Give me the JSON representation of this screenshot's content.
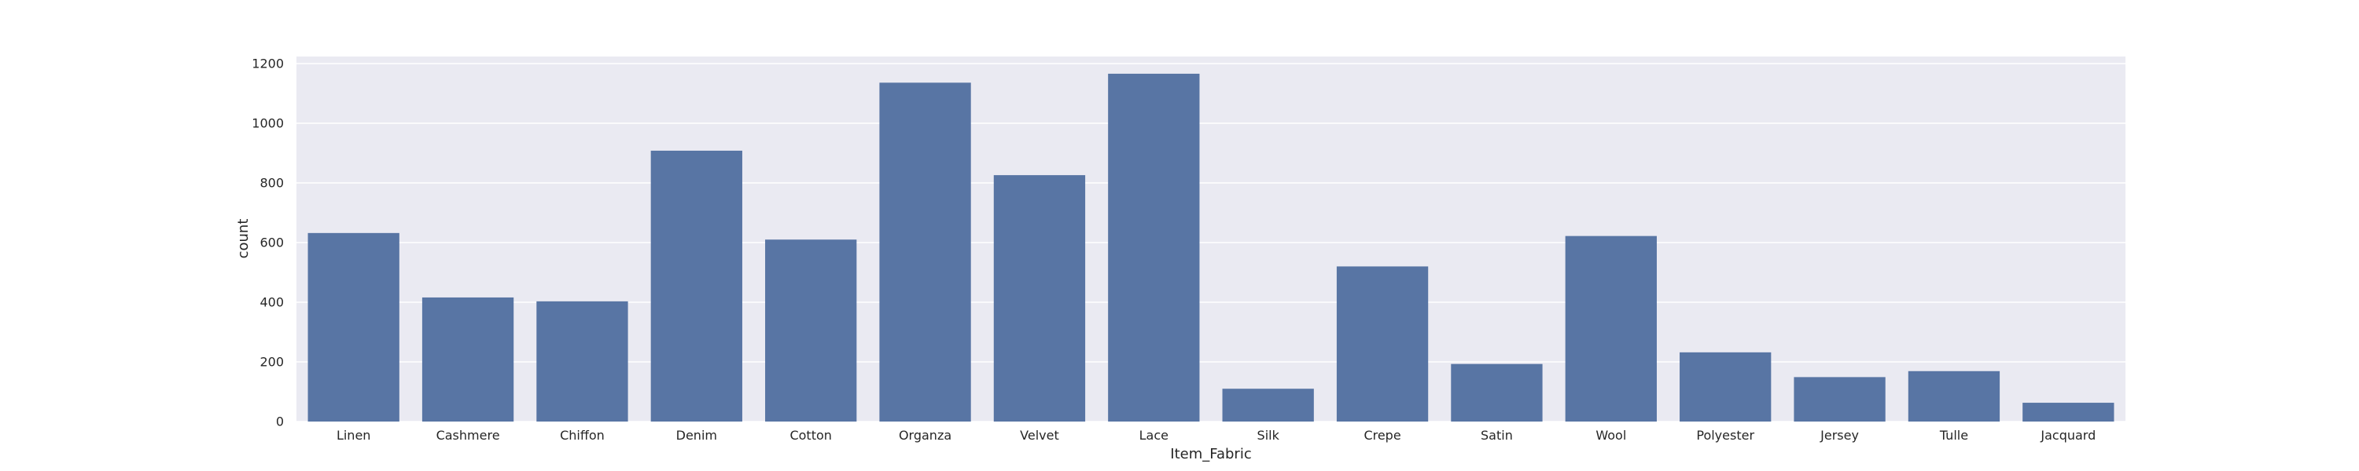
{
  "chart_data": {
    "type": "bar",
    "xlabel": "Item_Fabric",
    "ylabel": "count",
    "categories": [
      "Linen",
      "Cashmere",
      "Chiffon",
      "Denim",
      "Cotton",
      "Organza",
      "Velvet",
      "Lace",
      "Silk",
      "Crepe",
      "Satin",
      "Wool",
      "Polyester",
      "Jersey",
      "Tulle",
      "Jacquard"
    ],
    "values": [
      632,
      416,
      403,
      908,
      610,
      1136,
      826,
      1166,
      110,
      520,
      193,
      622,
      232,
      149,
      169,
      63
    ],
    "ylim": [
      0,
      1200
    ],
    "yticks": [
      0,
      200,
      400,
      600,
      800,
      1000,
      1200
    ],
    "grid": true,
    "style": "seaborn-darkgrid",
    "colors": {
      "bar": "#5875a4",
      "plot_background": "#eaeaf2",
      "grid": "#ffffff",
      "text": "#262626"
    }
  }
}
